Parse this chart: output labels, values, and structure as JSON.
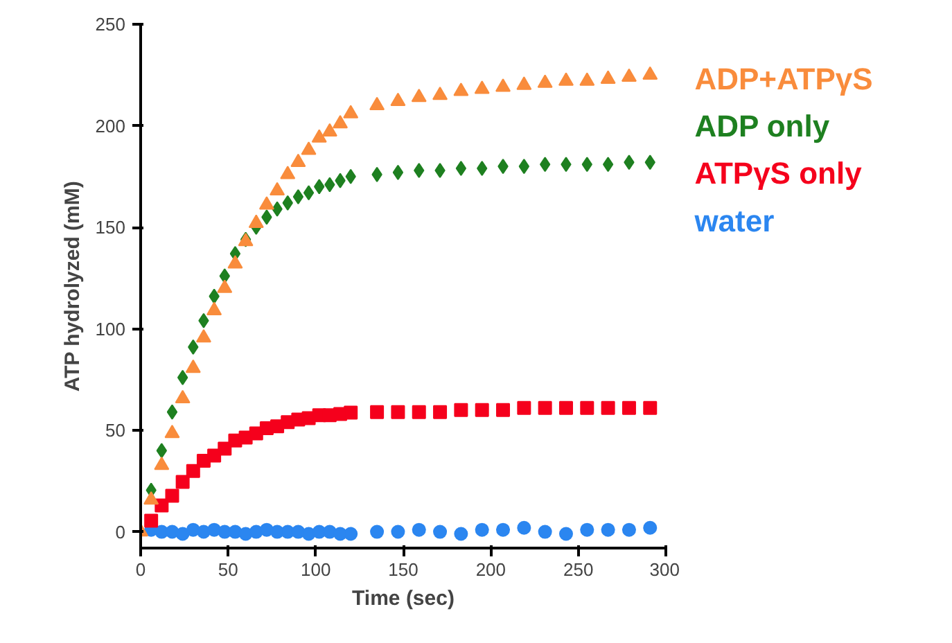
{
  "chart_data": {
    "type": "scatter",
    "xlabel": "Time (sec)",
    "ylabel": "ATP hydrolyzed (mM)",
    "x": [
      0,
      6,
      12,
      18,
      24,
      30,
      36,
      42,
      48,
      54,
      60,
      66,
      72,
      78,
      84,
      90,
      96,
      102,
      108,
      114,
      120,
      135,
      147,
      159,
      171,
      183,
      195,
      207,
      219,
      231,
      243,
      255,
      267,
      279,
      291
    ],
    "series": [
      {
        "name": "ADP+ATPγS",
        "color": "#f98c3c",
        "marker": "triangle",
        "values": [
          0,
          15.7,
          32.8,
          48.5,
          65.6,
          80.6,
          95.6,
          109,
          120,
          132,
          143,
          152,
          161,
          168,
          176,
          182,
          188,
          194,
          197,
          201,
          206,
          210,
          212,
          214,
          215,
          217,
          218,
          219,
          220,
          221,
          222,
          222,
          223,
          224,
          225
        ]
      },
      {
        "name": "ADP only",
        "color": "#1e8020",
        "marker": "diamond",
        "values": [
          null,
          20.5,
          40,
          59,
          76,
          91,
          104,
          116,
          126,
          137,
          144,
          150,
          155,
          159,
          162,
          165,
          167,
          170,
          171,
          173,
          175,
          176,
          177,
          178,
          178,
          179,
          179,
          180,
          180,
          181,
          181,
          181,
          181,
          182,
          182
        ]
      },
      {
        "name": "ATPγS only",
        "color": "#f5001c",
        "marker": "square",
        "values": [
          null,
          5.5,
          13,
          17.8,
          24.6,
          30,
          35,
          37.6,
          41,
          45,
          46.4,
          48.5,
          51,
          52,
          54,
          55.3,
          56,
          57.4,
          57.4,
          58,
          58.7,
          59,
          59,
          59,
          59,
          60,
          60,
          60,
          61,
          61,
          61,
          61,
          61,
          61,
          61
        ]
      },
      {
        "name": "water",
        "color": "#2b86f0",
        "marker": "circle",
        "values": [
          null,
          1,
          0,
          0,
          -1,
          1,
          0,
          1,
          0,
          0,
          -1,
          0,
          1,
          0,
          0,
          0,
          -1,
          0,
          0,
          -1,
          -1,
          0,
          0,
          1,
          0,
          -1,
          1,
          1,
          2,
          0,
          -1,
          1,
          1,
          1,
          2
        ]
      }
    ],
    "xlim": [
      0,
      300
    ],
    "ylim": [
      -8,
      250
    ],
    "xticks": [
      0,
      50,
      100,
      150,
      200,
      250,
      300
    ],
    "yticks": [
      0,
      50,
      100,
      150,
      200,
      250
    ],
    "grid": false
  }
}
